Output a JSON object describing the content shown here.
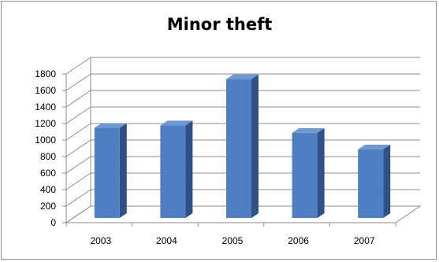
{
  "chart_data": {
    "type": "bar",
    "style": "3d-column",
    "title": "Minor theft",
    "categories": [
      "2003",
      "2004",
      "2005",
      "2006",
      "2007"
    ],
    "values": [
      1090,
      1120,
      1680,
      1030,
      830
    ],
    "ylim": [
      0,
      1800
    ],
    "yticks": [
      0,
      200,
      400,
      600,
      800,
      1000,
      1200,
      1400,
      1600,
      1800
    ],
    "grid": true,
    "legend": "none",
    "colors": {
      "bar_front": "#4f7fc2",
      "bar_side": "#2f5187",
      "bar_top": "#6f97d0",
      "gridline": "#8c8c8c"
    }
  }
}
